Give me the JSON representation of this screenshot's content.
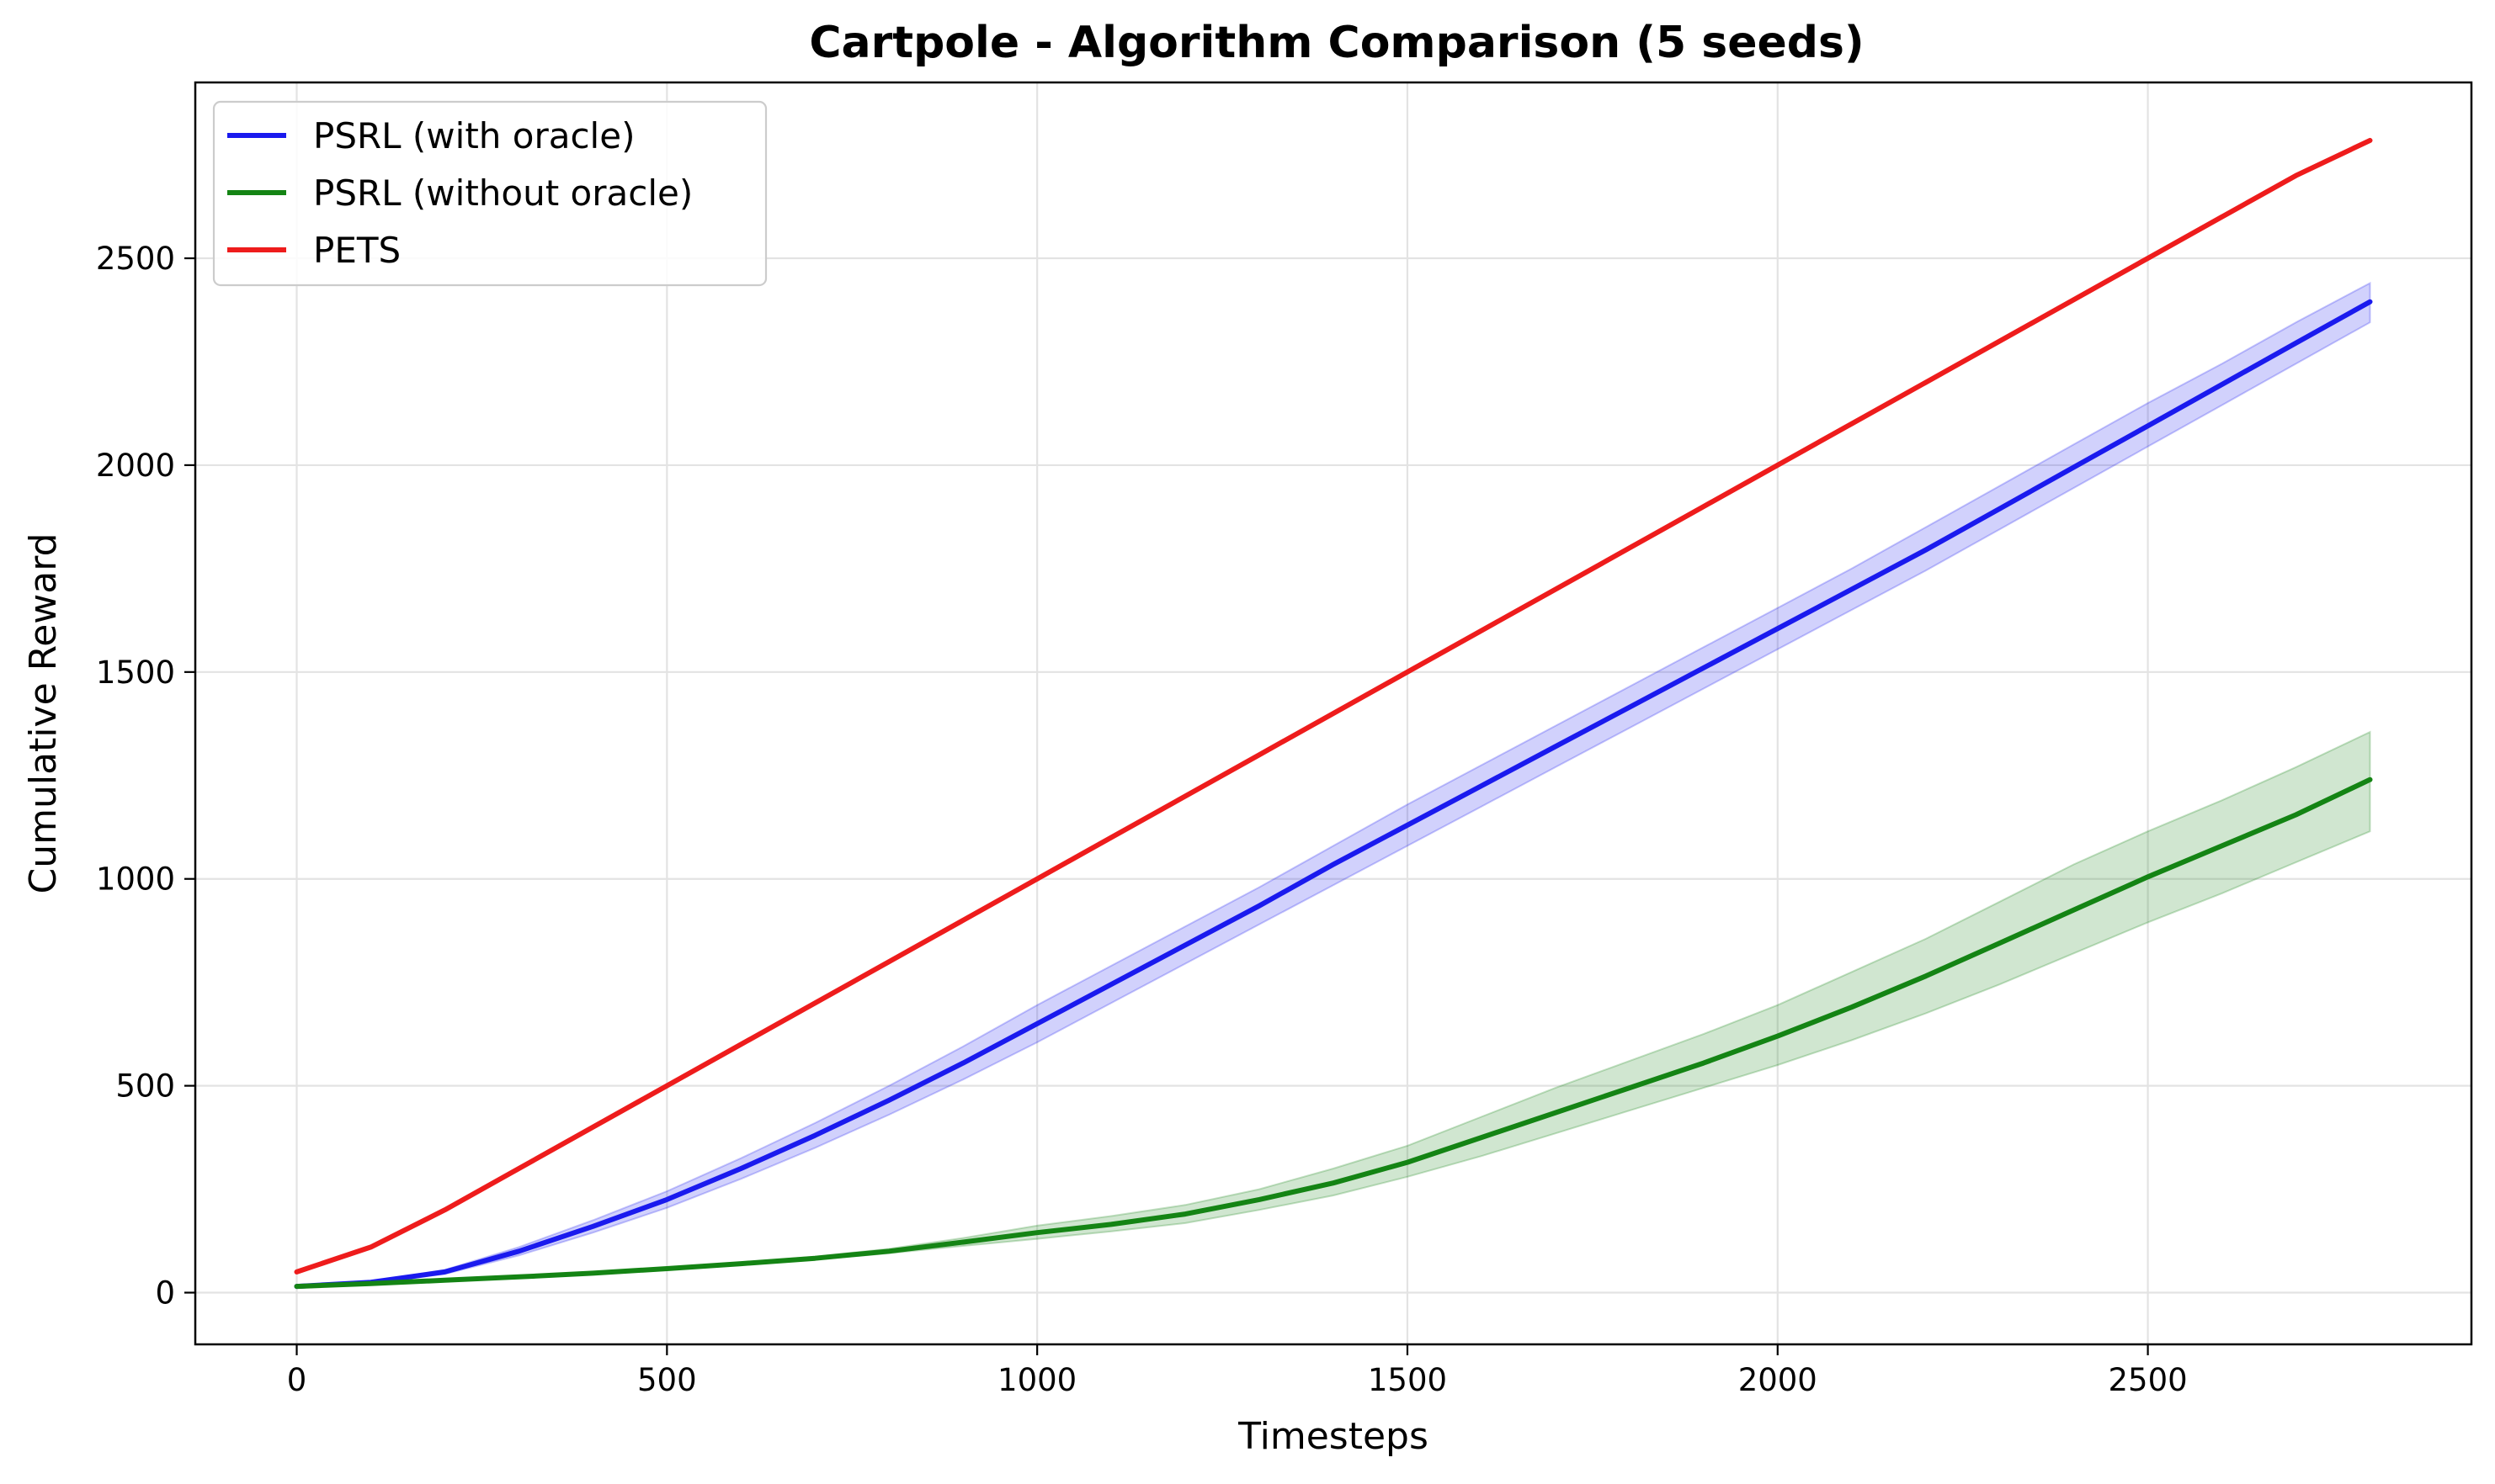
{
  "chart_data": {
    "type": "line",
    "title": "Cartpole - Algorithm Comparison (5 seeds)",
    "xlabel": "Timesteps",
    "ylabel": "Cumulative Reward",
    "xlim": [
      -137,
      2937
    ],
    "ylim": [
      -125,
      2925
    ],
    "xticks": [
      0,
      500,
      1000,
      1500,
      2000,
      2500
    ],
    "yticks": [
      0,
      500,
      1000,
      1500,
      2000,
      2500
    ],
    "grid": true,
    "legend_position": "top-left",
    "x": [
      0,
      100,
      200,
      300,
      400,
      500,
      600,
      700,
      800,
      900,
      1000,
      1100,
      1200,
      1300,
      1400,
      1500,
      1600,
      1700,
      1800,
      1900,
      2000,
      2100,
      2200,
      2300,
      2400,
      2500,
      2600,
      2700,
      2800
    ],
    "series": [
      {
        "name": "PSRL (with oracle)",
        "color": "#1a1aee",
        "values": [
          15,
          25,
          50,
          100,
          160,
          225,
          300,
          380,
          465,
          555,
          650,
          745,
          840,
          935,
          1035,
          1130,
          1225,
          1320,
          1415,
          1510,
          1605,
          1700,
          1795,
          1895,
          1995,
          2095,
          2195,
          2295,
          2395
        ],
        "lower": [
          15,
          23,
          45,
          90,
          145,
          205,
          275,
          350,
          430,
          515,
          605,
          700,
          795,
          890,
          985,
          1080,
          1175,
          1270,
          1365,
          1460,
          1555,
          1650,
          1745,
          1845,
          1945,
          2045,
          2145,
          2245,
          2345
        ],
        "upper": [
          15,
          27,
          55,
          110,
          175,
          245,
          325,
          410,
          500,
          595,
          695,
          790,
          885,
          980,
          1080,
          1180,
          1275,
          1370,
          1465,
          1560,
          1655,
          1750,
          1850,
          1950,
          2050,
          2150,
          2245,
          2345,
          2440
        ]
      },
      {
        "name": "PSRL (without oracle)",
        "color": "#148414",
        "values": [
          15,
          22,
          30,
          38,
          47,
          58,
          70,
          83,
          100,
          122,
          145,
          165,
          190,
          225,
          265,
          315,
          375,
          435,
          495,
          555,
          620,
          690,
          765,
          845,
          925,
          1005,
          1080,
          1155,
          1240
        ],
        "lower": [
          15,
          21,
          29,
          36,
          45,
          55,
          67,
          80,
          95,
          113,
          130,
          148,
          168,
          200,
          235,
          280,
          330,
          385,
          440,
          495,
          550,
          610,
          675,
          745,
          820,
          895,
          965,
          1040,
          1115
        ],
        "upper": [
          15,
          23,
          31,
          40,
          49,
          61,
          73,
          87,
          106,
          132,
          162,
          185,
          212,
          250,
          300,
          355,
          425,
          495,
          560,
          625,
          695,
          775,
          855,
          945,
          1035,
          1115,
          1190,
          1270,
          1355
        ]
      },
      {
        "name": "PETS",
        "color": "#ee1c1c",
        "values": [
          50,
          110,
          200,
          300,
          400,
          500,
          600,
          700,
          800,
          900,
          1000,
          1100,
          1200,
          1300,
          1400,
          1500,
          1600,
          1700,
          1800,
          1900,
          2000,
          2100,
          2200,
          2300,
          2400,
          2500,
          2600,
          2700,
          2785
        ]
      }
    ]
  }
}
